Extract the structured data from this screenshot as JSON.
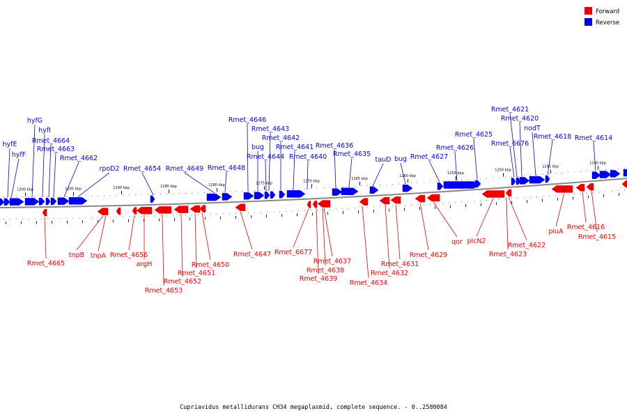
{
  "caption": "Cupriavidus metallidurans CH34 megaplasmid, complete sequence. - 0..2580084",
  "legend": {
    "forward": {
      "label": "Forward",
      "color": "#ee0000"
    },
    "reverse": {
      "label": "Reverse",
      "color": "#0000ee"
    }
  },
  "colors": {
    "backbone": "#888888",
    "leader": "#000000"
  },
  "scale_ticks": [
    "1300 kbp",
    "1295 kbp",
    "1290 kbp",
    "1285 kbp",
    "1280 kbp",
    "1275 kbp",
    "1270 kbp",
    "1265 kbp",
    "1260 kbp",
    "1255 kbp",
    "1250 kbp",
    "1245 kbp",
    "1240 kbp"
  ],
  "reverse_genes": [
    "hyfE",
    "hyfF",
    "hyfG",
    "hyfI",
    "Rmet_4664",
    "Rmet_4663",
    "Rmet_4662",
    "rpoD2",
    "Rmet_4654",
    "Rmet_4649",
    "Rmet_4648",
    "Rmet_4646",
    "bug",
    "Rmet_4643",
    "Rmet_4644",
    "Rmet_4642",
    "Rmet_4641",
    "Rmet_4640",
    "Rmet_4636",
    "Rmet_4635",
    "tauD",
    "bug",
    "Rmet_4627",
    "Rmet_4626",
    "Rmet_4625",
    "Rmet_6676",
    "Rmet_4621",
    "Rmet_4620",
    "nodT",
    "Rmet_4618",
    "Rmet_4614"
  ],
  "forward_genes": [
    "Rmet_4665",
    "tnpB",
    "tnpA",
    "Rmet_4656",
    "argH",
    "Rmet_4653",
    "Rmet_4652",
    "Rmet_4651",
    "Rmet_4650",
    "Rmet_4647",
    "Rmet_6677",
    "Rmet_4637",
    "Rmet_4638",
    "Rmet_4639",
    "Rmet_4634",
    "Rmet_4632",
    "Rmet_4631",
    "Rmet_4629",
    "qor",
    "plcN2",
    "Rmet_4623",
    "Rmet_4622",
    "piuA",
    "Rmet_4616",
    "Rmet_4615"
  ]
}
